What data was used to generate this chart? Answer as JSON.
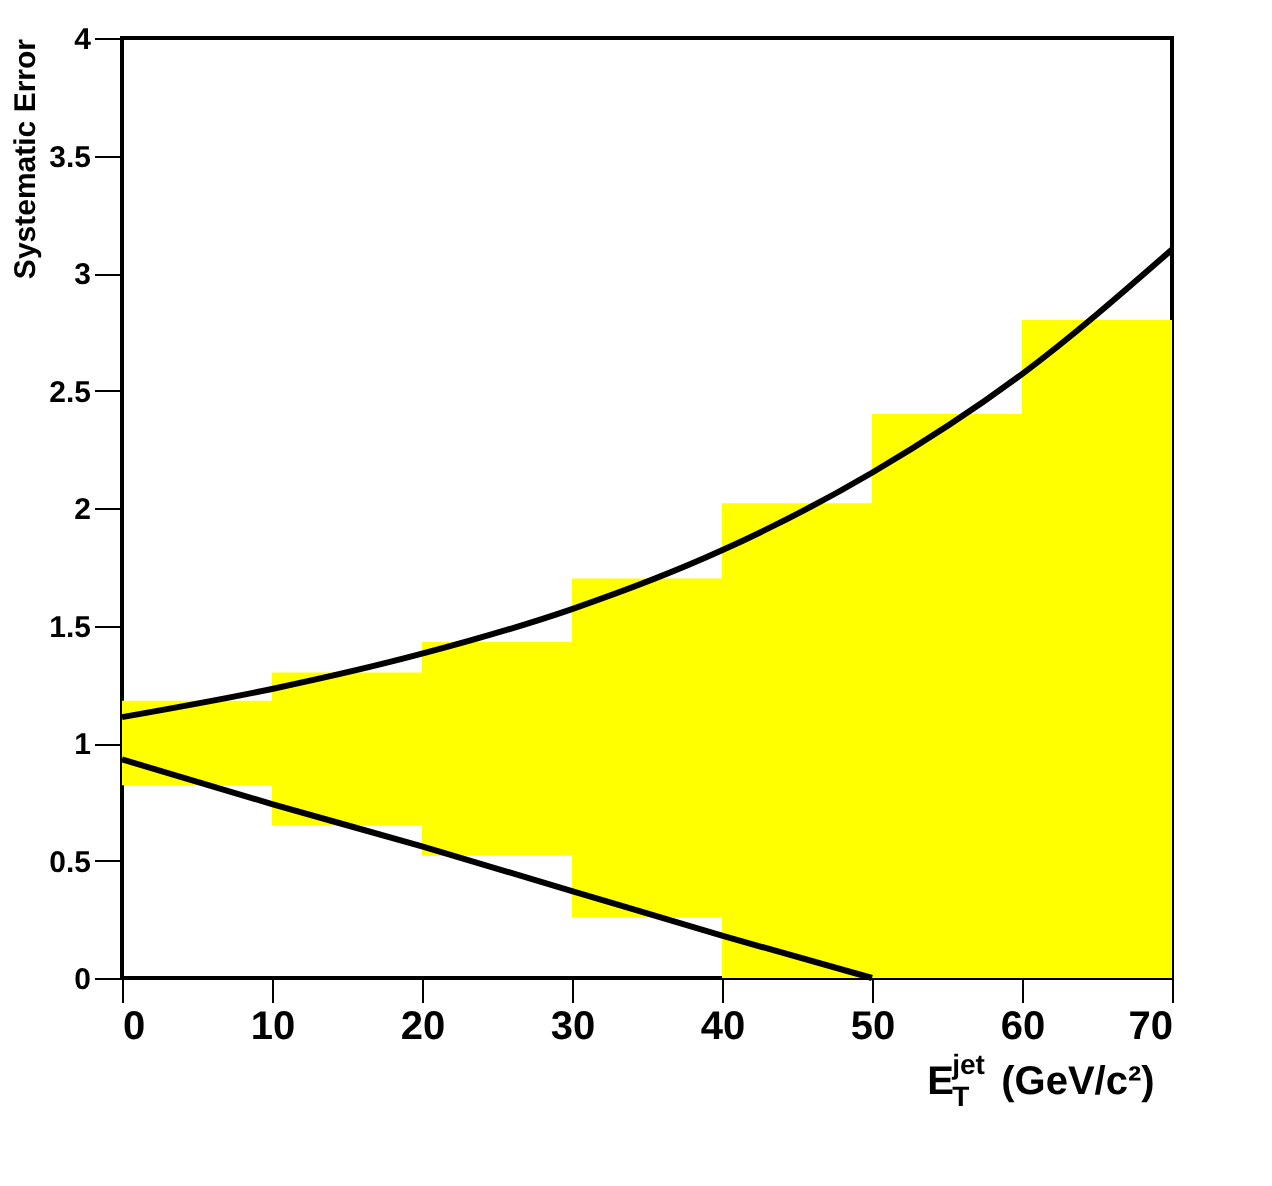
{
  "chart_data": {
    "type": "bar",
    "xlabel": "E$^{jet}$$_{T}$ (GeV/c²)",
    "ylabel": "Systematic Error",
    "x": [
      5,
      15,
      25,
      35,
      45,
      55,
      65
    ],
    "xlim": [
      0,
      70
    ],
    "xticks": [
      0,
      10,
      20,
      30,
      40,
      50,
      60,
      70
    ],
    "ylim": [
      0,
      4
    ],
    "yticks": [
      0,
      0.5,
      1,
      1.5,
      2,
      2.5,
      3,
      3.5,
      4
    ],
    "grid": false,
    "series": [
      {
        "color": "#ffff00",
        "base": [
          0.82,
          0.65,
          0.52,
          0.26,
          0,
          0,
          0
        ],
        "values": [
          0.36,
          0.65,
          0.91,
          1.44,
          2.02,
          2.4,
          2.8
        ]
      },
      {
        "type": "line",
        "color": "#000000",
        "x": [
          0,
          10,
          20,
          30,
          40,
          50,
          60,
          70
        ],
        "values": [
          1.11,
          1.23,
          1.38,
          1.57,
          1.82,
          2.15,
          2.57,
          3.1
        ]
      },
      {
        "type": "line",
        "color": "#000000",
        "x": [
          0,
          10,
          20,
          30,
          40,
          50
        ],
        "values": [
          0.93,
          0.74,
          0.56,
          0.37,
          0.18,
          0.0
        ]
      }
    ]
  }
}
